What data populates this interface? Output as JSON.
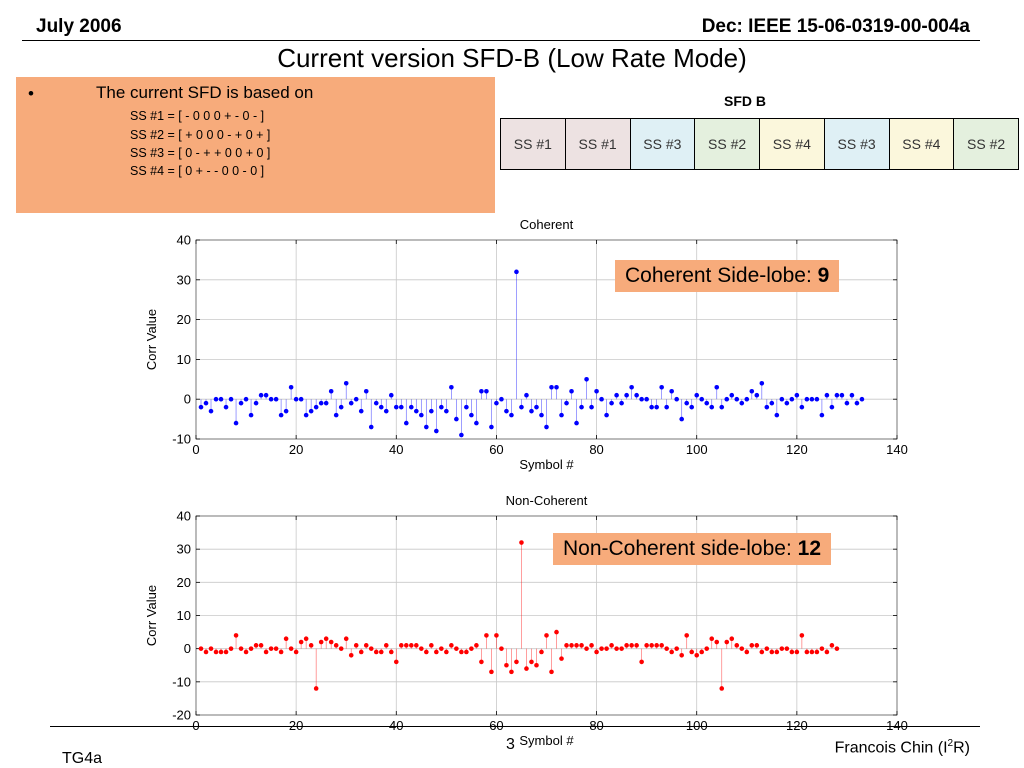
{
  "header": {
    "date": "July 2006",
    "doc": "Dec: IEEE 15-06-0319-00-004a",
    "title": "Current version SFD-B (Low Rate Mode)"
  },
  "textbox": {
    "bullet": "•",
    "text": "The current SFD is based on",
    "ss_lines": [
      "SS #1 = [ - 0 0 0 + - 0 - ]",
      "SS #2 = [ + 0 0 0 - + 0 + ]",
      "SS #3 = [ 0 - + + 0 0 + 0 ]",
      "SS #4 = [ 0 + - - 0 0 - 0 ]"
    ]
  },
  "sfd": {
    "title": "SFD B",
    "cells": [
      {
        "label": "SS #1",
        "color": "#ede2e2"
      },
      {
        "label": "SS #1",
        "color": "#ede2e2"
      },
      {
        "label": "SS #3",
        "color": "#dff0f5"
      },
      {
        "label": "SS #2",
        "color": "#e4f0de"
      },
      {
        "label": "SS #4",
        "color": "#fbf7dc"
      },
      {
        "label": "SS #3",
        "color": "#dff0f5"
      },
      {
        "label": "SS #4",
        "color": "#fbf7dc"
      },
      {
        "label": "SS #2",
        "color": "#e4f0de"
      }
    ]
  },
  "callouts": {
    "coherent_prefix": "Coherent Side-lobe: ",
    "coherent_value": "9",
    "noncoherent_prefix": "Non-Coherent side-lobe: ",
    "noncoherent_value": "12"
  },
  "footer": {
    "left": "TG4a",
    "page": "3",
    "author_prefix": "Francois Chin (I",
    "author_sup": "2",
    "author_suffix": "R)"
  },
  "chart_data": [
    {
      "type": "stem",
      "title": "Coherent",
      "xlabel": "Symbol #",
      "ylabel": "Corr Value",
      "xlim": [
        0,
        140
      ],
      "ylim": [
        -10,
        40
      ],
      "xticks": [
        0,
        20,
        40,
        60,
        80,
        100,
        120,
        140
      ],
      "yticks": [
        -10,
        0,
        10,
        20,
        30,
        40
      ],
      "grid": true,
      "color": "#0000ff",
      "x_start": 1,
      "values": [
        -2,
        -1,
        -3,
        0,
        0,
        -2,
        0,
        -6,
        -1,
        0,
        -4,
        -1,
        1,
        1,
        0,
        0,
        -4,
        -3,
        3,
        0,
        0,
        -4,
        -3,
        -2,
        -1,
        -1,
        2,
        -4,
        -2,
        4,
        -1,
        0,
        -3,
        2,
        -7,
        -1,
        -2,
        -3,
        1,
        -2,
        -2,
        -6,
        -2,
        -3,
        -4,
        -7,
        -3,
        -8,
        -2,
        -3,
        3,
        -5,
        -9,
        -2,
        -4,
        -6,
        2,
        2,
        -7,
        -1,
        0,
        -3,
        -4,
        32,
        -2,
        1,
        -3,
        -2,
        -4,
        -7,
        3,
        3,
        -4,
        -1,
        2,
        -6,
        -2,
        5,
        -2,
        2,
        0,
        -4,
        -1,
        1,
        -1,
        1,
        3,
        1,
        0,
        0,
        -2,
        -2,
        3,
        -2,
        2,
        0,
        -5,
        -1,
        -2,
        1,
        0,
        -1,
        -2,
        3,
        -2,
        0,
        1,
        0,
        -1,
        0,
        2,
        1,
        4,
        -2,
        -1,
        -4,
        0,
        -1,
        0,
        1,
        -2,
        0,
        0,
        0,
        -4,
        1,
        -2,
        1,
        1,
        -1,
        1,
        -1,
        0
      ],
      "annotation": "Coherent Side-lobe: 9"
    },
    {
      "type": "stem",
      "title": "Non-Coherent",
      "xlabel": "Symbol #",
      "ylabel": "Corr Value",
      "xlim": [
        0,
        140
      ],
      "ylim": [
        -20,
        40
      ],
      "xticks": [
        0,
        20,
        40,
        60,
        80,
        100,
        120,
        140
      ],
      "yticks": [
        -20,
        -10,
        0,
        10,
        20,
        30,
        40
      ],
      "grid": true,
      "color": "#ff0000",
      "x_start": 1,
      "values": [
        0,
        -1,
        0,
        -1,
        -1,
        -1,
        0,
        4,
        0,
        -1,
        0,
        1,
        1,
        -1,
        0,
        0,
        -1,
        3,
        0,
        -1,
        2,
        3,
        1,
        -12,
        2,
        3,
        2,
        1,
        0,
        3,
        -2,
        1,
        -1,
        1,
        0,
        -1,
        -1,
        1,
        -1,
        -4,
        1,
        1,
        1,
        1,
        0,
        -1,
        1,
        -1,
        0,
        -1,
        1,
        0,
        -1,
        -1,
        0,
        1,
        -4,
        4,
        -7,
        4,
        0,
        -5,
        -7,
        -4,
        32,
        -6,
        -4,
        -5,
        -1,
        4,
        -7,
        5,
        -3,
        1,
        1,
        1,
        1,
        0,
        1,
        -1,
        0,
        0,
        1,
        0,
        0,
        1,
        1,
        1,
        -4,
        1,
        1,
        1,
        1,
        0,
        -1,
        0,
        -2,
        4,
        -1,
        -2,
        -1,
        0,
        3,
        2,
        -12,
        2,
        3,
        1,
        0,
        -1,
        1,
        1,
        -1,
        0,
        -1,
        -1,
        0,
        0,
        -1,
        -1,
        4,
        -1,
        -1,
        -1,
        0,
        -1,
        1,
        0
      ]
    }
  ]
}
